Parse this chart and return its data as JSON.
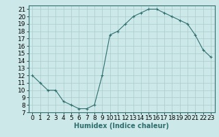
{
  "x": [
    0,
    1,
    2,
    3,
    4,
    5,
    6,
    7,
    8,
    9,
    10,
    11,
    12,
    13,
    14,
    15,
    16,
    17,
    18,
    19,
    20,
    21,
    22,
    23
  ],
  "y": [
    12,
    11,
    10,
    10,
    8.5,
    8,
    7.5,
    7.5,
    8,
    12,
    17.5,
    18,
    19,
    20,
    20.5,
    21,
    21,
    20.5,
    20,
    19.5,
    19,
    17.5,
    15.5,
    14.5
  ],
  "line_color": "#2e6e6e",
  "marker": "+",
  "bg_color": "#cce8e8",
  "grid_color": "#aacccc",
  "xlabel": "Humidex (Indice chaleur)",
  "xlim": [
    -0.5,
    23.5
  ],
  "ylim": [
    7,
    21.5
  ],
  "yticks": [
    7,
    8,
    9,
    10,
    11,
    12,
    13,
    14,
    15,
    16,
    17,
    18,
    19,
    20,
    21
  ],
  "xticks": [
    0,
    1,
    2,
    3,
    4,
    5,
    6,
    7,
    8,
    9,
    10,
    11,
    12,
    13,
    14,
    15,
    16,
    17,
    18,
    19,
    20,
    21,
    22,
    23
  ],
  "label_fontsize": 7,
  "tick_fontsize": 6.5
}
